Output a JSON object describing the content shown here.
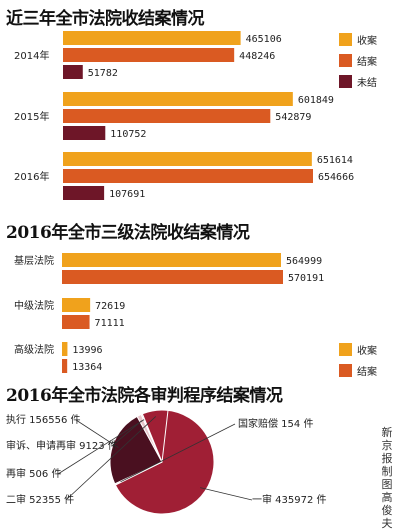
{
  "colors": {
    "received": "#F0A21C",
    "closed": "#DA5A22",
    "pending": "#6E1628",
    "pie_main": "#A01F35",
    "pie_dark": "#4A1020",
    "pie_light": "#E9C7CC",
    "outline": "#ffffff"
  },
  "credit": "新京报制图高俊夫",
  "chart_data": [
    {
      "type": "bar",
      "title": "近三年全市法院收结案情况",
      "categories": [
        "2014年",
        "2015年",
        "2016年"
      ],
      "series": [
        {
          "name": "收案",
          "values": [
            465106,
            601849,
            651614
          ]
        },
        {
          "name": "结案",
          "values": [
            448246,
            542879,
            654666
          ]
        },
        {
          "name": "未结",
          "values": [
            51782,
            110752,
            107691
          ]
        }
      ],
      "labels": [
        [
          "465106",
          "448246",
          "51782"
        ],
        [
          "601849",
          "542879",
          "110752"
        ],
        [
          "651614",
          "654666",
          "107691"
        ]
      ],
      "legend": [
        "收案",
        "结案",
        "未结"
      ],
      "legend_position": "right"
    },
    {
      "type": "bar",
      "title": "2016年全市三级法院收结案情况",
      "categories": [
        "基层法院",
        "中级法院",
        "高级法院"
      ],
      "series": [
        {
          "name": "收案",
          "values": [
            564999,
            72619,
            13996
          ]
        },
        {
          "name": "结案",
          "values": [
            570191,
            71111,
            13364
          ]
        }
      ],
      "labels": [
        [
          "564999",
          "570191"
        ],
        [
          "72619",
          "71111"
        ],
        [
          "13996",
          "13364"
        ]
      ],
      "legend": [
        "收案",
        "结案"
      ],
      "legend_position": "right"
    },
    {
      "type": "pie",
      "title": "2016年全市法院各审判程序结案情况",
      "slices": [
        {
          "label": "一审 435972 件",
          "value": 435972
        },
        {
          "label": "国家赔偿 154 件",
          "value": 154
        },
        {
          "label": "执行 156556 件",
          "value": 156556
        },
        {
          "label": "审诉、申请再审 9123 件",
          "value": 9123
        },
        {
          "label": "再审 506 件",
          "value": 506
        },
        {
          "label": "二审 52355 件",
          "value": 52355
        }
      ]
    }
  ]
}
